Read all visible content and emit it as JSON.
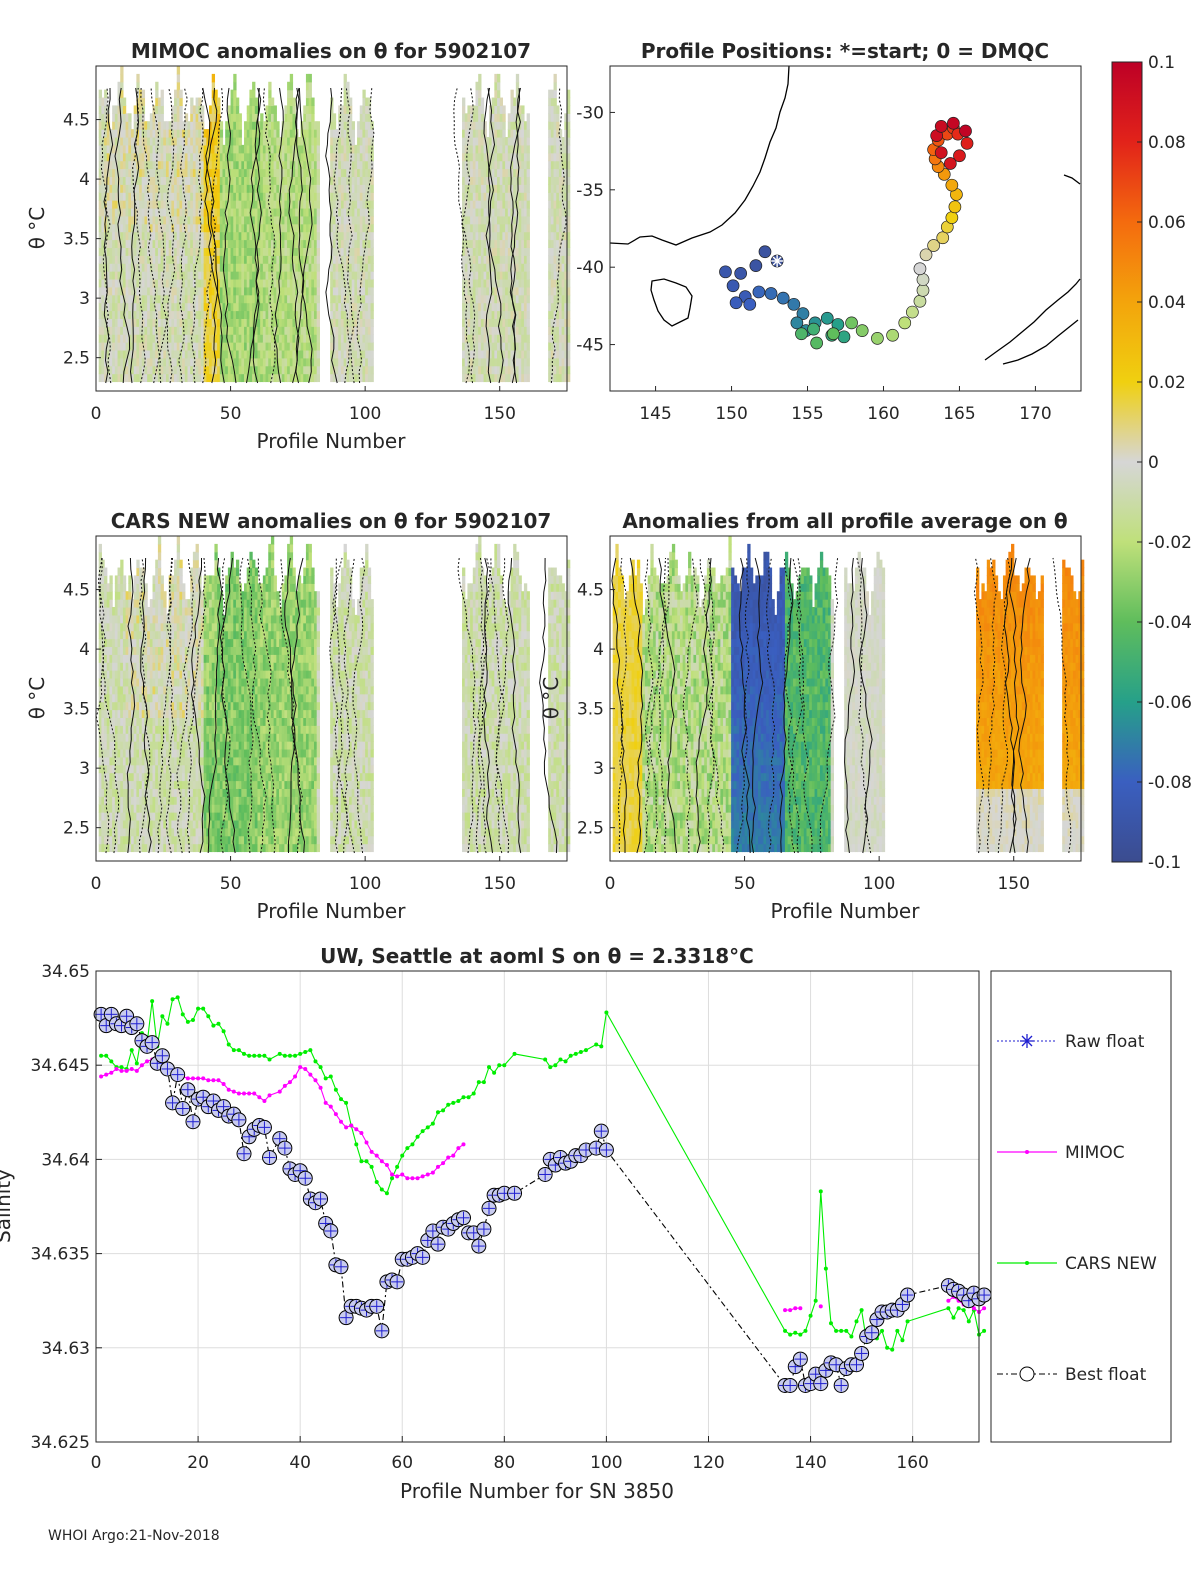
{
  "footer": "WHOI Argo:21-Nov-2018",
  "colorbar": {
    "ticks": [
      "0.1",
      "0.08",
      "0.06",
      "0.04",
      "0.02",
      "0",
      "-0.02",
      "-0.04",
      "-0.06",
      "-0.08",
      "-0.1"
    ],
    "range": [
      -0.1,
      0.1
    ]
  },
  "chart_data": [
    {
      "type": "heatmap",
      "id": "mimoc",
      "title": "MIMOC anomalies on θ  for 5902107",
      "xlabel": "Profile Number",
      "ylabel": "θ °C",
      "xticks": [
        "0",
        "50",
        "100",
        "150"
      ],
      "yticks": [
        "2.5",
        "3",
        "3.5",
        "4",
        "4.5"
      ],
      "xlim": [
        0,
        175
      ],
      "ylim": [
        2.22,
        4.95
      ]
    },
    {
      "type": "scatter",
      "id": "positions",
      "title": "Profile Positions: *=start; 0 = DMQC",
      "xticks": [
        "145",
        "150",
        "155",
        "160",
        "165",
        "170"
      ],
      "yticks": [
        "-30",
        "-35",
        "-40",
        "-45"
      ],
      "xlim": [
        142,
        173
      ],
      "ylim": [
        -48,
        -27
      ],
      "track_lon": [
        153.0,
        152.2,
        151.6,
        150.6,
        149.6,
        150.1,
        150.9,
        150.3,
        151.2,
        151.8,
        152.6,
        153.4,
        154.1,
        154.7,
        154.3,
        154.9,
        155.5,
        156.3,
        157.0,
        157.4,
        156.6,
        155.4,
        154.6,
        155.6,
        156.7,
        157.9,
        158.6,
        159.6,
        160.6,
        161.4,
        161.9,
        162.4,
        162.6,
        162.6,
        162.4,
        162.8,
        163.3,
        163.9,
        164.2,
        164.5,
        164.7,
        164.8,
        164.5,
        164.0,
        163.6,
        163.4,
        163.3,
        163.6,
        164.2,
        164.6,
        164.9,
        165.5,
        165.0,
        164.4,
        163.8,
        163.5,
        163.8,
        164.6,
        165.4
      ],
      "track_lat": [
        -39.6,
        -39.0,
        -39.9,
        -40.4,
        -40.3,
        -41.2,
        -41.9,
        -42.3,
        -42.4,
        -41.6,
        -41.7,
        -42.0,
        -42.4,
        -43.0,
        -43.6,
        -44.1,
        -43.6,
        -43.3,
        -43.7,
        -44.5,
        -44.4,
        -44.0,
        -44.3,
        -44.9,
        -44.3,
        -43.6,
        -44.1,
        -44.6,
        -44.4,
        -43.6,
        -42.9,
        -42.2,
        -41.5,
        -40.8,
        -40.1,
        -39.2,
        -38.6,
        -38.1,
        -37.4,
        -36.8,
        -36.1,
        -35.3,
        -34.7,
        -34.0,
        -33.5,
        -33.0,
        -32.4,
        -31.8,
        -31.4,
        -31.0,
        -31.4,
        -32.0,
        -32.8,
        -33.3,
        -32.6,
        -31.5,
        -30.9,
        -30.7,
        -31.2
      ],
      "track_val": [
        -0.095,
        -0.093,
        -0.092,
        -0.09,
        -0.088,
        -0.086,
        -0.084,
        -0.082,
        -0.08,
        -0.078,
        -0.076,
        -0.074,
        -0.072,
        -0.07,
        -0.068,
        -0.066,
        -0.064,
        -0.062,
        -0.06,
        -0.057,
        -0.054,
        -0.05,
        -0.046,
        -0.043,
        -0.04,
        -0.036,
        -0.032,
        -0.028,
        -0.024,
        -0.02,
        -0.016,
        -0.012,
        -0.008,
        -0.004,
        0.0,
        0.004,
        0.008,
        0.012,
        0.016,
        0.02,
        0.026,
        0.032,
        0.038,
        0.044,
        0.05,
        0.056,
        0.062,
        0.066,
        0.07,
        0.074,
        0.078,
        0.082,
        0.085,
        0.088,
        0.09,
        0.092,
        0.094,
        0.096,
        0.098
      ],
      "start": [
        153.0,
        -39.6
      ]
    },
    {
      "type": "heatmap",
      "id": "cars",
      "title": "CARS NEW anomalies on θ for 5902107",
      "xlabel": "Profile Number",
      "ylabel": "θ °C",
      "xticks": [
        "0",
        "50",
        "100",
        "150"
      ],
      "yticks": [
        "2.5",
        "3",
        "3.5",
        "4",
        "4.5"
      ],
      "xlim": [
        0,
        175
      ],
      "ylim": [
        2.22,
        4.95
      ]
    },
    {
      "type": "heatmap",
      "id": "avg",
      "title": "Anomalies from all profile average on θ",
      "xlabel": "Profile Number",
      "ylabel": "θ °C",
      "xticks": [
        "0",
        "50",
        "100",
        "150"
      ],
      "yticks": [
        "2.5",
        "3",
        "3.5",
        "4",
        "4.5"
      ],
      "xlim": [
        0,
        175
      ],
      "ylim": [
        2.22,
        4.95
      ]
    },
    {
      "type": "line",
      "id": "salinity",
      "title": "UW, Seattle at aoml S on θ = 2.3318°C",
      "xlabel": "Profile Number for SN 3850",
      "ylabel": "Salinity",
      "xticks": [
        "0",
        "20",
        "40",
        "60",
        "80",
        "100",
        "120",
        "140",
        "160"
      ],
      "yticks": [
        "34.65",
        "34.645",
        "34.64",
        "34.635",
        "34.63",
        "34.625"
      ],
      "xlim": [
        0,
        173
      ],
      "ylim": [
        34.625,
        34.65
      ],
      "legend": [
        "Raw float",
        "MIMOC",
        "CARS NEW",
        "Best float"
      ],
      "series": [
        {
          "name": "Best float",
          "x": [
            1,
            2,
            3,
            4,
            5,
            6,
            7,
            8,
            9,
            10,
            11,
            12,
            13,
            14,
            15,
            16,
            17,
            18,
            19,
            20,
            21,
            22,
            23,
            24,
            25,
            26,
            27,
            28,
            29,
            30,
            31,
            32,
            33,
            34,
            36,
            37,
            38,
            39,
            40,
            41,
            42,
            43,
            44,
            45,
            46,
            47,
            48,
            49,
            50,
            51,
            52,
            53,
            54,
            55,
            56,
            57,
            58,
            59,
            60,
            61,
            62,
            63,
            64,
            65,
            66,
            67,
            68,
            69,
            70,
            71,
            72,
            73,
            74,
            75,
            76,
            77,
            78,
            79,
            80,
            82,
            88,
            89,
            90,
            91,
            92,
            93,
            94,
            95,
            96,
            98,
            99,
            100,
            135,
            136,
            137,
            138,
            139,
            140,
            141,
            142,
            143,
            144,
            145,
            146,
            147,
            148,
            149,
            150,
            151,
            152,
            153,
            154,
            155,
            156,
            157,
            158,
            159,
            167,
            168,
            169,
            170,
            171,
            172,
            173,
            174
          ],
          "y": [
            34.6477,
            34.6471,
            34.6477,
            34.6472,
            34.6471,
            34.6476,
            34.647,
            34.6472,
            34.6463,
            34.646,
            34.6462,
            34.6451,
            34.6455,
            34.6448,
            34.643,
            34.6445,
            34.6427,
            34.6437,
            34.642,
            34.6432,
            34.6433,
            34.6428,
            34.6431,
            34.6426,
            34.6428,
            34.6423,
            34.6424,
            34.6421,
            34.6403,
            34.6412,
            34.6416,
            34.6418,
            34.6417,
            34.6401,
            34.6411,
            34.6406,
            34.6395,
            34.6392,
            34.6394,
            34.639,
            34.6379,
            34.6377,
            34.6379,
            34.6366,
            34.6362,
            34.6344,
            34.6343,
            34.6316,
            34.6322,
            34.6322,
            34.6321,
            34.632,
            34.6322,
            34.6322,
            34.6309,
            34.6335,
            34.6336,
            34.6335,
            34.6347,
            34.6347,
            34.6348,
            34.635,
            34.6348,
            34.6357,
            34.6362,
            34.6355,
            34.6364,
            34.6363,
            34.6366,
            34.6368,
            34.6369,
            34.6361,
            34.6361,
            34.6354,
            34.6363,
            34.6374,
            34.6381,
            34.6381,
            34.6382,
            34.6382,
            34.6392,
            34.64,
            34.6397,
            34.6401,
            34.6398,
            34.6399,
            34.6402,
            34.6402,
            34.6405,
            34.6406,
            34.6415,
            34.6405,
            34.628,
            34.628,
            34.629,
            34.6294,
            34.628,
            34.6281,
            34.6286,
            34.6281,
            34.6288,
            34.6292,
            34.6291,
            34.628,
            34.6289,
            34.6291,
            34.6291,
            34.6297,
            34.6306,
            34.6308,
            34.6315,
            34.6319,
            34.6319,
            34.632,
            34.632,
            34.6323,
            34.6328,
            34.6333,
            34.6331,
            34.633,
            34.6328,
            34.6325,
            34.6329,
            34.6326,
            34.6328
          ]
        },
        {
          "name": "MIMOC",
          "x": [
            1,
            2,
            3,
            4,
            5,
            6,
            7,
            8,
            9,
            10,
            11,
            12,
            13,
            14,
            15,
            16,
            17,
            18,
            19,
            20,
            21,
            22,
            23,
            24,
            25,
            26,
            27,
            28,
            29,
            30,
            31,
            32,
            33,
            34,
            36,
            37,
            38,
            39,
            40,
            41,
            42,
            43,
            44,
            45,
            46,
            47,
            48,
            49,
            50,
            51,
            52,
            53,
            54,
            55,
            56,
            57,
            58,
            59,
            60,
            61,
            62,
            63,
            64,
            65,
            66,
            67,
            68,
            69,
            70,
            71,
            72,
            135,
            136,
            137,
            138,
            142,
            167,
            168,
            169,
            170,
            171,
            172,
            173,
            174
          ],
          "y": [
            34.6444,
            34.6445,
            34.6446,
            34.6448,
            34.6447,
            34.6447,
            34.6448,
            34.6447,
            34.645,
            34.6452,
            34.6453,
            34.6455,
            34.6452,
            34.6447,
            34.6446,
            34.6445,
            34.6444,
            34.6443,
            34.6443,
            34.6443,
            34.6443,
            34.6442,
            34.6442,
            34.6442,
            34.644,
            34.6437,
            34.6436,
            34.6435,
            34.6435,
            34.6435,
            34.6435,
            34.6433,
            34.6431,
            34.6434,
            34.6436,
            34.6439,
            34.6441,
            34.6444,
            34.6449,
            34.6448,
            34.6445,
            34.6442,
            34.6438,
            34.643,
            34.6428,
            34.6424,
            34.642,
            34.6417,
            34.6418,
            34.6416,
            34.6414,
            34.6409,
            34.6404,
            34.6402,
            34.6399,
            34.6397,
            34.6392,
            34.6391,
            34.6392,
            34.639,
            34.639,
            34.639,
            34.6391,
            34.6392,
            34.6393,
            34.6396,
            34.6398,
            34.6401,
            34.6402,
            34.6406,
            34.6408,
            34.632,
            34.632,
            34.6321,
            34.6321,
            34.6322,
            34.6325,
            34.6327,
            34.6325,
            34.6323,
            34.6324,
            34.6321,
            34.6319,
            34.6321
          ]
        },
        {
          "name": "CARS NEW",
          "x": [
            1,
            2,
            3,
            4,
            5,
            6,
            7,
            8,
            9,
            10,
            11,
            12,
            13,
            14,
            15,
            16,
            17,
            18,
            19,
            20,
            21,
            22,
            23,
            24,
            25,
            26,
            27,
            28,
            29,
            30,
            31,
            32,
            33,
            34,
            36,
            37,
            38,
            39,
            40,
            41,
            42,
            43,
            44,
            45,
            46,
            47,
            48,
            49,
            50,
            51,
            52,
            53,
            54,
            55,
            56,
            57,
            58,
            59,
            60,
            61,
            62,
            63,
            64,
            65,
            66,
            67,
            68,
            69,
            70,
            71,
            72,
            73,
            74,
            75,
            76,
            77,
            78,
            79,
            80,
            82,
            88,
            89,
            90,
            91,
            92,
            93,
            94,
            95,
            96,
            98,
            99,
            100,
            135,
            136,
            137,
            138,
            139,
            140,
            141,
            142,
            143,
            144,
            145,
            146,
            147,
            148,
            149,
            150,
            151,
            152,
            153,
            154,
            155,
            156,
            157,
            158,
            159,
            167,
            168,
            169,
            170,
            171,
            172,
            173,
            174
          ],
          "y": [
            34.6455,
            34.6455,
            34.6452,
            34.6449,
            34.6449,
            34.6448,
            34.6458,
            34.6451,
            34.6467,
            34.6461,
            34.6484,
            34.646,
            34.6476,
            34.6472,
            34.6485,
            34.6486,
            34.6477,
            34.6473,
            34.6474,
            34.648,
            34.648,
            34.6476,
            34.6471,
            34.6472,
            34.6468,
            34.6461,
            34.6458,
            34.6458,
            34.6456,
            34.6455,
            34.6455,
            34.6455,
            34.6455,
            34.6453,
            34.6456,
            34.6455,
            34.6455,
            34.6455,
            34.6456,
            34.6457,
            34.6458,
            34.6452,
            34.6449,
            34.6443,
            34.6444,
            34.6437,
            34.6432,
            34.643,
            34.6418,
            34.6408,
            34.6399,
            34.6399,
            34.6396,
            34.6388,
            34.6384,
            34.6382,
            34.639,
            34.6396,
            34.6402,
            34.6406,
            34.6408,
            34.6412,
            34.6415,
            34.6417,
            34.6419,
            34.6425,
            34.6426,
            34.6429,
            34.643,
            34.6431,
            34.6433,
            34.6433,
            34.6435,
            34.6441,
            34.6441,
            34.6449,
            34.6446,
            34.645,
            34.645,
            34.6456,
            34.6453,
            34.6449,
            34.645,
            34.6453,
            34.6452,
            34.6455,
            34.6456,
            34.6457,
            34.6458,
            34.6461,
            34.646,
            34.6478,
            34.6309,
            34.6307,
            34.6308,
            34.6307,
            34.6309,
            34.6317,
            34.6325,
            34.6383,
            34.6342,
            34.6313,
            34.6309,
            34.6309,
            34.6309,
            34.6306,
            34.6314,
            34.632,
            34.6303,
            34.6305,
            34.6305,
            34.6309,
            34.63,
            34.6299,
            34.6309,
            34.6304,
            34.6314,
            34.6321,
            34.6316,
            34.6321,
            34.632,
            34.6314,
            34.632,
            34.6307,
            34.6309
          ]
        }
      ]
    }
  ]
}
